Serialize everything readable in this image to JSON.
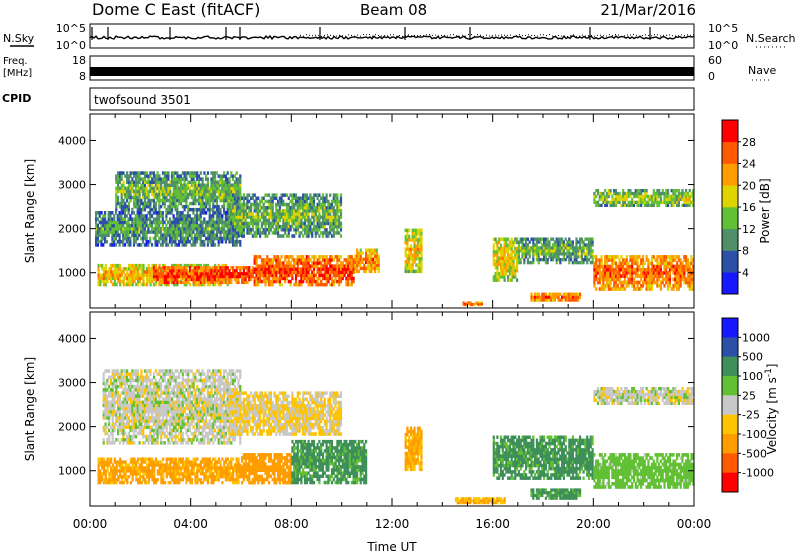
{
  "header": {
    "station": "Dome C East (fitACF)",
    "beam": "Beam 08",
    "date": "21/Mar/2016"
  },
  "nsky_panel": {
    "label": "N.Sky",
    "ytick_top": "10^5",
    "ytick_bottom": "10^0",
    "right_label": "N.Search",
    "right_tick_top": "10^5",
    "right_tick_bottom": "10^0"
  },
  "freq_panel": {
    "label_line1": "Freq.",
    "label_line2": "[MHz]",
    "ytick_top": "18",
    "ytick_bottom": "8",
    "right_label": "Nave",
    "right_tick_top": "60",
    "right_tick_bottom": "0"
  },
  "cpid_panel": {
    "label": "CPID",
    "value": "twofsound 3501"
  },
  "xaxis": {
    "label": "Time UT",
    "ticks": [
      "00:00",
      "04:00",
      "08:00",
      "12:00",
      "16:00",
      "20:00",
      "00:00"
    ]
  },
  "colors": {
    "power": [
      "#1818ff",
      "#2c4fa8",
      "#4f8f6a",
      "#62c034",
      "#e0d400",
      "#ff9d00",
      "#ff5a00",
      "#ff0000"
    ],
    "velocity": [
      "#ff0000",
      "#ff5a00",
      "#ff9d00",
      "#ffc400",
      "#c8c8c8",
      "#62c034",
      "#3f8f5a",
      "#2c4fa8",
      "#1818ff"
    ]
  },
  "chart_data": [
    {
      "type": "heatmap",
      "title": "",
      "xlabel": "Time UT",
      "ylabel": "Slant Range [km]",
      "x_unit": "hours UT",
      "xlim": [
        0,
        24
      ],
      "ylim": [
        200,
        4600
      ],
      "yticks": [
        1000,
        2000,
        3000,
        4000
      ],
      "colorbar": {
        "label": "Power [dB]",
        "ticks": [
          4,
          8,
          12,
          16,
          20,
          24,
          28
        ],
        "range": [
          0,
          32
        ]
      },
      "regions": [
        {
          "t0": 0.3,
          "t1": 5.5,
          "r0": 700,
          "r1": 1200,
          "value": 22
        },
        {
          "t0": 2.5,
          "t1": 6.5,
          "r0": 750,
          "r1": 1150,
          "value": 29
        },
        {
          "t0": 6.5,
          "t1": 10.5,
          "r0": 700,
          "r1": 1400,
          "value": 28
        },
        {
          "t0": 10.5,
          "t1": 11.5,
          "r0": 1000,
          "r1": 1550,
          "value": 24
        },
        {
          "t0": 0.2,
          "t1": 6.0,
          "r0": 1600,
          "r1": 2400,
          "value": 12
        },
        {
          "t0": 1.0,
          "t1": 6.0,
          "r0": 2400,
          "r1": 3300,
          "value": 14
        },
        {
          "t0": 5.5,
          "t1": 10.0,
          "r0": 1800,
          "r1": 2800,
          "value": 14
        },
        {
          "t0": 12.5,
          "t1": 13.2,
          "r0": 1000,
          "r1": 2000,
          "value": 20
        },
        {
          "t0": 14.8,
          "t1": 15.6,
          "r0": 250,
          "r1": 350,
          "value": 26
        },
        {
          "t0": 16.0,
          "t1": 17.0,
          "r0": 800,
          "r1": 1800,
          "value": 20
        },
        {
          "t0": 17.0,
          "t1": 20.0,
          "r0": 1200,
          "r1": 1800,
          "value": 14
        },
        {
          "t0": 17.5,
          "t1": 19.5,
          "r0": 350,
          "r1": 550,
          "value": 26
        },
        {
          "t0": 20.0,
          "t1": 24.0,
          "r0": 600,
          "r1": 1400,
          "value": 26
        },
        {
          "t0": 20.0,
          "t1": 24.0,
          "r0": 2500,
          "r1": 2900,
          "value": 16
        }
      ]
    },
    {
      "type": "heatmap",
      "title": "",
      "xlabel": "Time UT",
      "ylabel": "Slant Range [km]",
      "x_unit": "hours UT",
      "xlim": [
        0,
        24
      ],
      "ylim": [
        200,
        4600
      ],
      "yticks": [
        1000,
        2000,
        3000,
        4000
      ],
      "colorbar": {
        "label": "Velocity [m s^-1]",
        "ticks": [
          "1000",
          "500",
          "100",
          "25",
          "-25",
          "-100",
          "-500",
          "-1000"
        ]
      },
      "regions": [
        {
          "t0": 0.3,
          "t1": 6.0,
          "r0": 700,
          "r1": 1300,
          "value": -150
        },
        {
          "t0": 6.0,
          "t1": 8.0,
          "r0": 700,
          "r1": 1400,
          "value": -250
        },
        {
          "t0": 8.0,
          "t1": 11.0,
          "r0": 700,
          "r1": 1700,
          "value": 150
        },
        {
          "t0": 0.5,
          "t1": 6.0,
          "r0": 1600,
          "r1": 3300,
          "value": 0
        },
        {
          "t0": 5.5,
          "t1": 10.0,
          "r0": 1800,
          "r1": 2800,
          "value": -30
        },
        {
          "t0": 12.5,
          "t1": 13.2,
          "r0": 1000,
          "r1": 2000,
          "value": -120
        },
        {
          "t0": 14.5,
          "t1": 16.5,
          "r0": 250,
          "r1": 400,
          "value": -100
        },
        {
          "t0": 16.0,
          "t1": 20.0,
          "r0": 800,
          "r1": 1800,
          "value": 150
        },
        {
          "t0": 17.5,
          "t1": 19.5,
          "r0": 350,
          "r1": 600,
          "value": 150
        },
        {
          "t0": 20.0,
          "t1": 24.0,
          "r0": 600,
          "r1": 1400,
          "value": 60
        },
        {
          "t0": 20.0,
          "t1": 24.0,
          "r0": 2500,
          "r1": 2900,
          "value": 0
        }
      ]
    }
  ]
}
